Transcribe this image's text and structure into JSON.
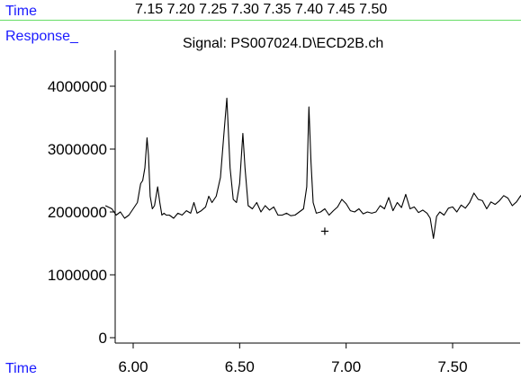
{
  "header": {
    "time_label": "Time",
    "time_values": "7.15  7.20  7.25  7.30  7.35  7.40  7.45  7.50",
    "response_label": "Response_",
    "signal_title": "Signal: PS007024.D\\ECD2B.ch",
    "bottom_time_label": "Time"
  },
  "colors": {
    "label_blue": "#1a1aff",
    "divider_green": "#66dd66",
    "trace": "#000000"
  },
  "chart_data": {
    "type": "line",
    "title": "Signal: PS007024.D\\ECD2B.ch",
    "xlabel": "Time",
    "ylabel": "Response_",
    "xlim": [
      5.87,
      7.88
    ],
    "ylim": [
      0,
      4400000
    ],
    "x_ticks": [
      6.0,
      6.5,
      7.0,
      7.5
    ],
    "x_tick_labels": [
      "6.00",
      "6.50",
      "7.00",
      "7.50"
    ],
    "y_ticks": [
      0,
      1000000,
      2000000,
      3000000,
      4000000
    ],
    "y_tick_labels": [
      "0",
      "1000000",
      "2000000",
      "3000000",
      "4000000"
    ],
    "marker": {
      "symbol": "+",
      "x": 6.9,
      "y": 1700000
    },
    "series": [
      {
        "x": [
          5.87,
          5.9,
          5.92,
          5.94,
          5.96,
          5.98,
          6.0,
          6.02,
          6.035,
          6.045,
          6.055,
          6.065,
          6.072,
          6.08,
          6.09,
          6.1,
          6.115,
          6.125,
          6.135,
          6.145,
          6.155,
          6.17,
          6.19,
          6.21,
          6.23,
          6.25,
          6.27,
          6.285,
          6.3,
          6.32,
          6.34,
          6.355,
          6.37,
          6.39,
          6.41,
          6.425,
          6.44,
          6.455,
          6.47,
          6.485,
          6.5,
          6.515,
          6.525,
          6.54,
          6.56,
          6.58,
          6.6,
          6.62,
          6.64,
          6.66,
          6.68,
          6.7,
          6.72,
          6.74,
          6.76,
          6.78,
          6.8,
          6.815,
          6.825,
          6.835,
          6.845,
          6.86,
          6.88,
          6.9,
          6.92,
          6.94,
          6.96,
          6.98,
          7.0,
          7.02,
          7.04,
          7.06,
          7.08,
          7.1,
          7.12,
          7.14,
          7.16,
          7.18,
          7.2,
          7.22,
          7.24,
          7.26,
          7.28,
          7.3,
          7.32,
          7.34,
          7.36,
          7.38,
          7.395,
          7.41,
          7.425,
          7.44,
          7.46,
          7.48,
          7.5,
          7.52,
          7.54,
          7.56,
          7.58,
          7.6,
          7.62,
          7.64,
          7.66,
          7.68,
          7.7,
          7.72,
          7.74,
          7.76,
          7.78,
          7.8,
          7.82,
          7.84,
          7.86,
          7.88
        ],
        "y": [
          2100000,
          2050000,
          1950000,
          2000000,
          1900000,
          1950000,
          2050000,
          2150000,
          2450000,
          2500000,
          2700000,
          3180000,
          2900000,
          2250000,
          2050000,
          2100000,
          2400000,
          2150000,
          1950000,
          1980000,
          1950000,
          1950000,
          1900000,
          1980000,
          1950000,
          2020000,
          1980000,
          2150000,
          1980000,
          2020000,
          2080000,
          2250000,
          2150000,
          2250000,
          2550000,
          3200000,
          3810000,
          2700000,
          2200000,
          2150000,
          2450000,
          3250000,
          2700000,
          2100000,
          2050000,
          2150000,
          2000000,
          2100000,
          2030000,
          2080000,
          1950000,
          1950000,
          1980000,
          1940000,
          1950000,
          2000000,
          2050000,
          2400000,
          3670000,
          2800000,
          2150000,
          1980000,
          2000000,
          2050000,
          1950000,
          2020000,
          2080000,
          2200000,
          2130000,
          2020000,
          2000000,
          2050000,
          1970000,
          2000000,
          1980000,
          2000000,
          2100000,
          2050000,
          2230000,
          2020000,
          2150000,
          2070000,
          2280000,
          2050000,
          2080000,
          1990000,
          2030000,
          1980000,
          1900000,
          1580000,
          1930000,
          2000000,
          1950000,
          2060000,
          2080000,
          2000000,
          2110000,
          2060000,
          2150000,
          2300000,
          2200000,
          2180000,
          2050000,
          2160000,
          2120000,
          2180000,
          2260000,
          2220000,
          2100000,
          2160000,
          2260000,
          2120000,
          2150000,
          2080000
        ]
      }
    ]
  }
}
